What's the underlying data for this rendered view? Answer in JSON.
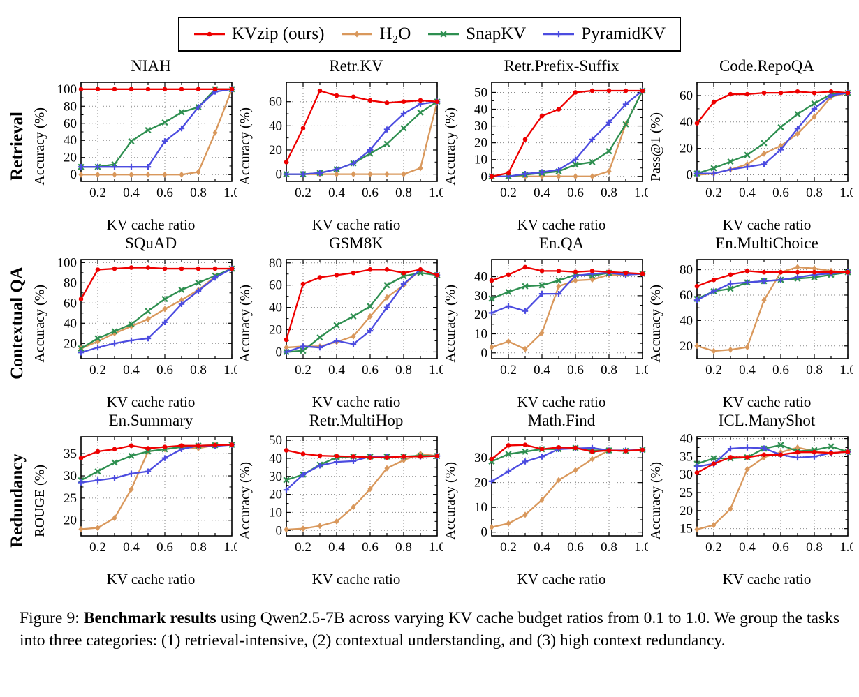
{
  "legend": {
    "items": [
      {
        "label": "KVzip (ours)",
        "color": "#ee0000",
        "marker": "circle"
      },
      {
        "label": "H₂O",
        "color": "#d9985c",
        "marker": "diamond"
      },
      {
        "label": "SnapKV",
        "color": "#2e8f50",
        "marker": "x"
      },
      {
        "label": "PyramidKV",
        "color": "#4c4ce0",
        "marker": "plus"
      }
    ]
  },
  "rows": [
    {
      "label": "Retrieval"
    },
    {
      "label": "Contextual QA"
    },
    {
      "label": "Redundancy"
    }
  ],
  "caption": {
    "prefix": "Figure 9: ",
    "bold": "Benchmark results",
    "rest": " using Qwen2.5-7B across varying KV cache budget ratios from 0.1 to 1.0. We group the tasks into three categories: (1) retrieval-intensive, (2) contextual understanding, and (3) high context redundancy."
  },
  "chart_data": [
    {
      "type": "line",
      "row": 0,
      "title": "NIAH",
      "ylabel": "Accuracy (%)",
      "xlabel": "KV cache ratio",
      "x": [
        0.1,
        0.2,
        0.3,
        0.4,
        0.5,
        0.6,
        0.7,
        0.8,
        0.9,
        1.0
      ],
      "xlim": [
        0.1,
        1.0
      ],
      "xticks": [
        0.2,
        0.4,
        0.6,
        0.8,
        1.0
      ],
      "ylim": [
        -8,
        108
      ],
      "yticks": [
        0,
        20,
        40,
        60,
        80,
        100
      ],
      "series": [
        {
          "name": "KVzip (ours)",
          "values": [
            100,
            100,
            100,
            100,
            100,
            100,
            100,
            100,
            100,
            100
          ]
        },
        {
          "name": "H₂O",
          "values": [
            0,
            0,
            0,
            0,
            0,
            0,
            0,
            3,
            49,
            100
          ]
        },
        {
          "name": "SnapKV",
          "values": [
            9,
            9,
            12,
            39,
            52,
            61,
            73,
            79,
            100,
            100
          ]
        },
        {
          "name": "PyramidKV",
          "values": [
            9,
            9,
            9,
            9,
            9,
            39,
            54,
            79,
            97,
            100
          ]
        }
      ]
    },
    {
      "type": "line",
      "row": 0,
      "title": "Retr.KV",
      "ylabel": "Accuracy (%)",
      "xlabel": "KV cache ratio",
      "x": [
        0.1,
        0.2,
        0.3,
        0.4,
        0.5,
        0.6,
        0.7,
        0.8,
        0.9,
        1.0
      ],
      "xlim": [
        0.1,
        1.0
      ],
      "xticks": [
        0.2,
        0.4,
        0.6,
        0.8,
        1.0
      ],
      "ylim": [
        -6,
        76
      ],
      "yticks": [
        0,
        20,
        40,
        60
      ],
      "series": [
        {
          "name": "KVzip (ours)",
          "values": [
            10,
            38,
            69,
            65,
            64,
            61,
            59,
            60,
            61,
            60
          ]
        },
        {
          "name": "H₂O",
          "values": [
            0,
            0,
            0,
            0,
            0,
            0,
            0,
            0,
            5,
            60
          ]
        },
        {
          "name": "SnapKV",
          "values": [
            0,
            0,
            1,
            4,
            9,
            17,
            25,
            38,
            51,
            60
          ]
        },
        {
          "name": "PyramidKV",
          "values": [
            0,
            0,
            1,
            4,
            9,
            20,
            37,
            50,
            58,
            60
          ]
        }
      ]
    },
    {
      "type": "line",
      "row": 0,
      "title": "Retr.Prefix-Suffix",
      "ylabel": "Accuracy (%)",
      "xlabel": "KV cache ratio",
      "x": [
        0.1,
        0.2,
        0.3,
        0.4,
        0.5,
        0.6,
        0.7,
        0.8,
        0.9,
        1.0
      ],
      "xlim": [
        0.1,
        1.0
      ],
      "xticks": [
        0.2,
        0.4,
        0.6,
        0.8,
        1.0
      ],
      "ylim": [
        -3,
        56
      ],
      "yticks": [
        0,
        10,
        20,
        30,
        40,
        50
      ],
      "series": [
        {
          "name": "KVzip (ours)",
          "values": [
            0,
            2,
            22,
            36,
            40,
            50,
            51,
            51,
            51,
            51
          ]
        },
        {
          "name": "H₂O",
          "values": [
            0,
            0,
            0,
            0,
            0,
            0,
            0,
            3,
            31,
            51
          ]
        },
        {
          "name": "SnapKV",
          "values": [
            0,
            0,
            1,
            2,
            3,
            7,
            8.5,
            15,
            31,
            51
          ]
        },
        {
          "name": "PyramidKV",
          "values": [
            0,
            0,
            1.5,
            2.5,
            4,
            10,
            22,
            32,
            43,
            51
          ]
        }
      ]
    },
    {
      "type": "line",
      "row": 0,
      "title": "Code.RepoQA",
      "ylabel": "Pass@1 (%)",
      "xlabel": "KV cache ratio",
      "x": [
        0.1,
        0.2,
        0.3,
        0.4,
        0.5,
        0.6,
        0.7,
        0.8,
        0.9,
        1.0
      ],
      "xlim": [
        0.1,
        1.0
      ],
      "xticks": [
        0.2,
        0.4,
        0.6,
        0.8,
        1.0
      ],
      "ylim": [
        -5,
        70
      ],
      "yticks": [
        0,
        20,
        40,
        60
      ],
      "series": [
        {
          "name": "KVzip (ours)",
          "values": [
            39,
            55,
            61,
            61,
            62,
            62,
            63,
            62,
            63,
            62
          ]
        },
        {
          "name": "H₂O",
          "values": [
            0,
            1,
            4,
            8,
            16,
            22,
            31,
            44,
            59,
            62
          ]
        },
        {
          "name": "SnapKV",
          "values": [
            1,
            5,
            10,
            15,
            24,
            36,
            46,
            54,
            61,
            62
          ]
        },
        {
          "name": "PyramidKV",
          "values": [
            1,
            1,
            4,
            6,
            8,
            19,
            35,
            50,
            60,
            62
          ]
        }
      ]
    },
    {
      "type": "line",
      "row": 1,
      "title": "SQuAD",
      "ylabel": "Accuracy (%)",
      "xlabel": "KV cache ratio",
      "x": [
        0.1,
        0.2,
        0.3,
        0.4,
        0.5,
        0.6,
        0.7,
        0.8,
        0.9,
        1.0
      ],
      "xlim": [
        0.1,
        1.0
      ],
      "xticks": [
        0.2,
        0.4,
        0.6,
        0.8,
        1.0
      ],
      "ylim": [
        5,
        103
      ],
      "yticks": [
        20,
        40,
        60,
        80,
        100
      ],
      "series": [
        {
          "name": "KVzip (ours)",
          "values": [
            64,
            93,
            94,
            95,
            95,
            94,
            94,
            94,
            94,
            94
          ]
        },
        {
          "name": "H₂O",
          "values": [
            15,
            22,
            30,
            37,
            44,
            54,
            63,
            73,
            86,
            94
          ]
        },
        {
          "name": "SnapKV",
          "values": [
            15,
            25,
            32,
            39,
            52,
            64,
            73,
            80,
            87,
            94
          ]
        },
        {
          "name": "PyramidKV",
          "values": [
            11,
            16,
            20,
            23,
            25,
            41,
            59,
            72,
            85,
            94
          ]
        }
      ]
    },
    {
      "type": "line",
      "row": 1,
      "title": "GSM8K",
      "ylabel": "Accuracy (%)",
      "xlabel": "KV cache ratio",
      "x": [
        0.1,
        0.2,
        0.3,
        0.4,
        0.5,
        0.6,
        0.7,
        0.8,
        0.9,
        1.0
      ],
      "xlim": [
        0.1,
        1.0
      ],
      "xticks": [
        0.2,
        0.4,
        0.6,
        0.8,
        1.0
      ],
      "ylim": [
        -6,
        83
      ],
      "yticks": [
        0,
        20,
        40,
        60,
        80
      ],
      "series": [
        {
          "name": "KVzip (ours)",
          "values": [
            11,
            61,
            67,
            69,
            71,
            74,
            74,
            71,
            74,
            69
          ]
        },
        {
          "name": "H₂O",
          "values": [
            4,
            5,
            5,
            9,
            14,
            32,
            49,
            60,
            74,
            69
          ]
        },
        {
          "name": "SnapKV",
          "values": [
            0,
            1,
            13,
            24,
            32,
            41,
            60,
            68,
            71,
            69
          ]
        },
        {
          "name": "PyramidKV",
          "values": [
            0,
            5,
            4,
            10,
            7,
            19,
            40,
            61,
            74,
            69
          ]
        }
      ]
    },
    {
      "type": "line",
      "row": 1,
      "title": "En.QA",
      "ylabel": "Accuracy (%)",
      "xlabel": "KV cache ratio",
      "x": [
        0.1,
        0.2,
        0.3,
        0.4,
        0.5,
        0.6,
        0.7,
        0.8,
        0.9,
        1.0
      ],
      "xlim": [
        0.1,
        1.0
      ],
      "xticks": [
        0.2,
        0.4,
        0.6,
        0.8,
        1.0
      ],
      "ylim": [
        -3,
        49
      ],
      "yticks": [
        0,
        10,
        20,
        30,
        40
      ],
      "series": [
        {
          "name": "KVzip (ours)",
          "values": [
            38,
            41,
            45,
            43,
            43,
            42.5,
            43,
            42.5,
            42,
            41.5
          ]
        },
        {
          "name": "H₂O",
          "values": [
            3,
            6,
            2,
            10.5,
            35,
            38,
            38.5,
            41,
            41,
            41.5
          ]
        },
        {
          "name": "SnapKV",
          "values": [
            28.5,
            32,
            35,
            35.5,
            38,
            41,
            40.5,
            42,
            41.5,
            41.5
          ]
        },
        {
          "name": "PyramidKV",
          "values": [
            21,
            24.5,
            22,
            31,
            31,
            40.5,
            41.5,
            42,
            41,
            41.5
          ]
        }
      ]
    },
    {
      "type": "line",
      "row": 1,
      "title": "En.MultiChoice",
      "ylabel": "Accuracy (%)",
      "xlabel": "KV cache ratio",
      "x": [
        0.1,
        0.2,
        0.3,
        0.4,
        0.5,
        0.6,
        0.7,
        0.8,
        0.9,
        1.0
      ],
      "xlim": [
        0.1,
        1.0
      ],
      "xticks": [
        0.2,
        0.4,
        0.6,
        0.8,
        1.0
      ],
      "ylim": [
        10,
        88
      ],
      "yticks": [
        20,
        40,
        60,
        80
      ],
      "series": [
        {
          "name": "KVzip (ours)",
          "values": [
            67,
            72,
            76,
            79,
            78,
            78,
            78,
            78,
            78,
            78
          ]
        },
        {
          "name": "H₂O",
          "values": [
            20,
            16,
            17,
            19,
            56,
            78,
            82,
            81,
            79,
            78
          ]
        },
        {
          "name": "SnapKV",
          "values": [
            57,
            63,
            65,
            70,
            71,
            72,
            73,
            74,
            76,
            78
          ]
        },
        {
          "name": "PyramidKV",
          "values": [
            56,
            63,
            69,
            70,
            71,
            72,
            74,
            76,
            77,
            78
          ]
        }
      ]
    },
    {
      "type": "line",
      "row": 2,
      "title": "En.Summary",
      "ylabel": "ROUGE (%)",
      "xlabel": "KV cache ratio",
      "x": [
        0.1,
        0.2,
        0.3,
        0.4,
        0.5,
        0.6,
        0.7,
        0.8,
        0.9,
        1.0
      ],
      "xlim": [
        0.1,
        1.0
      ],
      "xticks": [
        0.2,
        0.4,
        0.6,
        0.8,
        1.0
      ],
      "ylim": [
        16.5,
        38.8
      ],
      "yticks": [
        20,
        25,
        30,
        35
      ],
      "series": [
        {
          "name": "KVzip (ours)",
          "values": [
            34,
            35.5,
            36,
            36.8,
            36.2,
            36.5,
            36.8,
            36.8,
            36.9,
            37
          ]
        },
        {
          "name": "H₂O",
          "values": [
            18,
            18.3,
            20.5,
            27,
            35.5,
            36,
            36.5,
            36.2,
            36.9,
            37
          ]
        },
        {
          "name": "SnapKV",
          "values": [
            29,
            31,
            33,
            34.5,
            35.5,
            36,
            36.5,
            36.8,
            36.9,
            37
          ]
        },
        {
          "name": "PyramidKV",
          "values": [
            28.5,
            29,
            29.5,
            30.5,
            31,
            34,
            36,
            36.8,
            36.7,
            37
          ]
        }
      ]
    },
    {
      "type": "line",
      "row": 2,
      "title": "Retr.MultiHop",
      "ylabel": "Accuracy (%)",
      "xlabel": "KV cache ratio",
      "x": [
        0.1,
        0.2,
        0.3,
        0.4,
        0.5,
        0.6,
        0.7,
        0.8,
        0.9,
        1.0
      ],
      "xlim": [
        0.1,
        1.0
      ],
      "xticks": [
        0.2,
        0.4,
        0.6,
        0.8,
        1.0
      ],
      "ylim": [
        -3,
        52
      ],
      "yticks": [
        0,
        10,
        20,
        30,
        40,
        50
      ],
      "series": [
        {
          "name": "KVzip (ours)",
          "values": [
            44.5,
            42.5,
            41.5,
            41.2,
            41,
            40.5,
            40.5,
            41,
            41,
            41.3
          ]
        },
        {
          "name": "H₂O",
          "values": [
            0.5,
            1,
            2.5,
            5,
            13,
            23,
            34.5,
            39,
            42.5,
            41.3
          ]
        },
        {
          "name": "SnapKV",
          "values": [
            28,
            31,
            36.5,
            40.5,
            41,
            41,
            41,
            41,
            41.5,
            41.3
          ]
        },
        {
          "name": "PyramidKV",
          "values": [
            22.5,
            31,
            36,
            38,
            38.5,
            41,
            41,
            41,
            41,
            41.3
          ]
        }
      ]
    },
    {
      "type": "line",
      "row": 2,
      "title": "Math.Find",
      "ylabel": "Accuracy (%)",
      "xlabel": "KV cache ratio",
      "x": [
        0.1,
        0.2,
        0.3,
        0.4,
        0.5,
        0.6,
        0.7,
        0.8,
        0.9,
        1.0
      ],
      "xlim": [
        0.1,
        1.0
      ],
      "xticks": [
        0.2,
        0.4,
        0.6,
        0.8,
        1.0
      ],
      "ylim": [
        -1.5,
        38.5
      ],
      "yticks": [
        0,
        10,
        20,
        30
      ],
      "series": [
        {
          "name": "KVzip (ours)",
          "values": [
            29.5,
            35,
            35.2,
            33.5,
            34.2,
            34,
            32.5,
            33,
            32.8,
            33.2
          ]
        },
        {
          "name": "H₂O",
          "values": [
            2,
            3.5,
            7,
            13,
            21,
            25,
            29.5,
            33,
            32.8,
            33.2
          ]
        },
        {
          "name": "SnapKV",
          "values": [
            28.5,
            31.5,
            32.5,
            33.5,
            33.5,
            34,
            33,
            33,
            32.8,
            33.2
          ]
        },
        {
          "name": "PyramidKV",
          "values": [
            20.5,
            24.5,
            28.5,
            30.5,
            33.5,
            33.8,
            34,
            33,
            33,
            33.2
          ]
        }
      ]
    },
    {
      "type": "line",
      "row": 2,
      "title": "ICL.ManyShot",
      "ylabel": "Accuracy (%)",
      "xlabel": "KV cache ratio",
      "x": [
        0.1,
        0.2,
        0.3,
        0.4,
        0.5,
        0.6,
        0.7,
        0.8,
        0.9,
        1.0
      ],
      "xlim": [
        0.1,
        1.0
      ],
      "xticks": [
        0.2,
        0.4,
        0.6,
        0.8,
        1.0
      ],
      "ylim": [
        13,
        40.5
      ],
      "yticks": [
        15,
        20,
        25,
        30,
        35,
        40
      ],
      "series": [
        {
          "name": "KVzip (ours)",
          "values": [
            30.5,
            33,
            34.8,
            34.8,
            35.5,
            35.5,
            36.2,
            36.2,
            36,
            36.3
          ]
        },
        {
          "name": "H₂O",
          "values": [
            14.8,
            16,
            20.5,
            31.5,
            34.8,
            36.2,
            37.5,
            36.5,
            36,
            36.3
          ]
        },
        {
          "name": "SnapKV",
          "values": [
            33,
            34.5,
            34.5,
            34.8,
            37.2,
            38.2,
            36.5,
            36.8,
            37.8,
            36.3
          ]
        },
        {
          "name": "PyramidKV",
          "values": [
            32.2,
            33,
            37.2,
            37.5,
            37.3,
            35.5,
            34.7,
            35,
            36,
            36.3
          ]
        }
      ]
    }
  ]
}
